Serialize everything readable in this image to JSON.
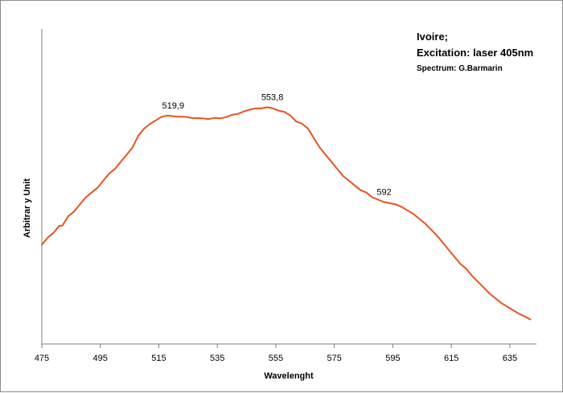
{
  "chart_data": {
    "type": "line",
    "title": "",
    "xlabel": "Wavelenght",
    "ylabel": "Arbitrar y Unit",
    "xlim": [
      475,
      643
    ],
    "ylim": [
      0,
      1
    ],
    "x_ticks": [
      "475",
      "495",
      "515",
      "535",
      "555",
      "575",
      "595",
      "615",
      "635"
    ],
    "x_tick_values": [
      475,
      495,
      515,
      535,
      555,
      575,
      595,
      615,
      635
    ],
    "grid": false,
    "line_color": "#e8531f",
    "series": [
      {
        "x": [
          475,
          477,
          479,
          481,
          482,
          484,
          486,
          488,
          490,
          492,
          494,
          496,
          498,
          500,
          502,
          504,
          506,
          508,
          510,
          512,
          514,
          516,
          518,
          520,
          522,
          524,
          526,
          528,
          530,
          532,
          534,
          536,
          538,
          540,
          542,
          544,
          546,
          548,
          550,
          552,
          554,
          556,
          558,
          560,
          562,
          564,
          566,
          568,
          570,
          572,
          574,
          576,
          578,
          580,
          582,
          584,
          586,
          588,
          590,
          592,
          594,
          596,
          598,
          600,
          602,
          604,
          606,
          608,
          610,
          612,
          614,
          616,
          618,
          620,
          622,
          624,
          626,
          628,
          630,
          632,
          634,
          636,
          638,
          640,
          642
        ],
        "y": [
          0.31,
          0.34,
          0.36,
          0.39,
          0.39,
          0.43,
          0.45,
          0.48,
          0.51,
          0.53,
          0.55,
          0.58,
          0.61,
          0.63,
          0.66,
          0.69,
          0.72,
          0.77,
          0.8,
          0.82,
          0.835,
          0.85,
          0.855,
          0.852,
          0.85,
          0.85,
          0.845,
          0.844,
          0.843,
          0.84,
          0.845,
          0.843,
          0.848,
          0.858,
          0.862,
          0.872,
          0.88,
          0.885,
          0.885,
          0.89,
          0.885,
          0.876,
          0.87,
          0.855,
          0.83,
          0.82,
          0.8,
          0.76,
          0.72,
          0.69,
          0.66,
          0.63,
          0.6,
          0.58,
          0.56,
          0.54,
          0.53,
          0.51,
          0.5,
          0.49,
          0.485,
          0.48,
          0.47,
          0.455,
          0.44,
          0.42,
          0.4,
          0.375,
          0.35,
          0.32,
          0.29,
          0.26,
          0.23,
          0.21,
          0.18,
          0.155,
          0.13,
          0.105,
          0.085,
          0.065,
          0.05,
          0.035,
          0.02,
          0.008,
          -0.005
        ]
      }
    ],
    "peak_labels": [
      {
        "x": 519.9,
        "y": 0.855,
        "text": "519,9"
      },
      {
        "x": 553.8,
        "y": 0.89,
        "text": "553,8"
      },
      {
        "x": 592,
        "y": 0.49,
        "text": "592"
      }
    ],
    "annotation": {
      "line1": "Ivoire;",
      "line2": "Excitation: laser 405nm",
      "line3": "Spectrum: G.Barmarin"
    }
  }
}
